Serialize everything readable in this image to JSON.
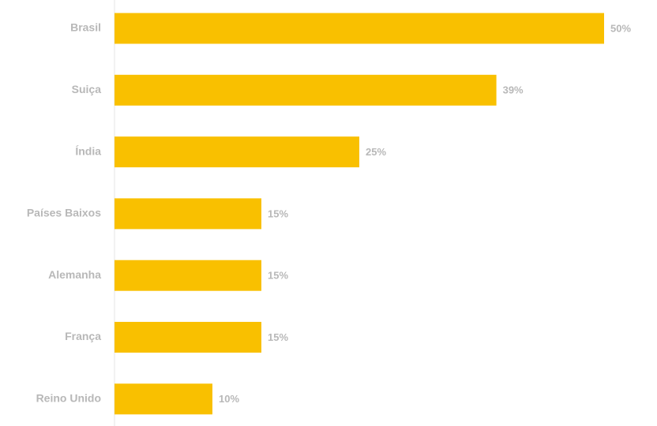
{
  "chart_data": {
    "type": "bar",
    "orientation": "horizontal",
    "categories": [
      "Brasil",
      "Suiça",
      "Índia",
      "Países Baixos",
      "Alemanha",
      "França",
      "Reino Unido"
    ],
    "values": [
      50,
      39,
      25,
      15,
      15,
      15,
      10
    ],
    "value_labels": [
      "50%",
      "39%",
      "25%",
      "15%",
      "15%",
      "15%",
      "10%"
    ],
    "color": "#f9c000"
  }
}
